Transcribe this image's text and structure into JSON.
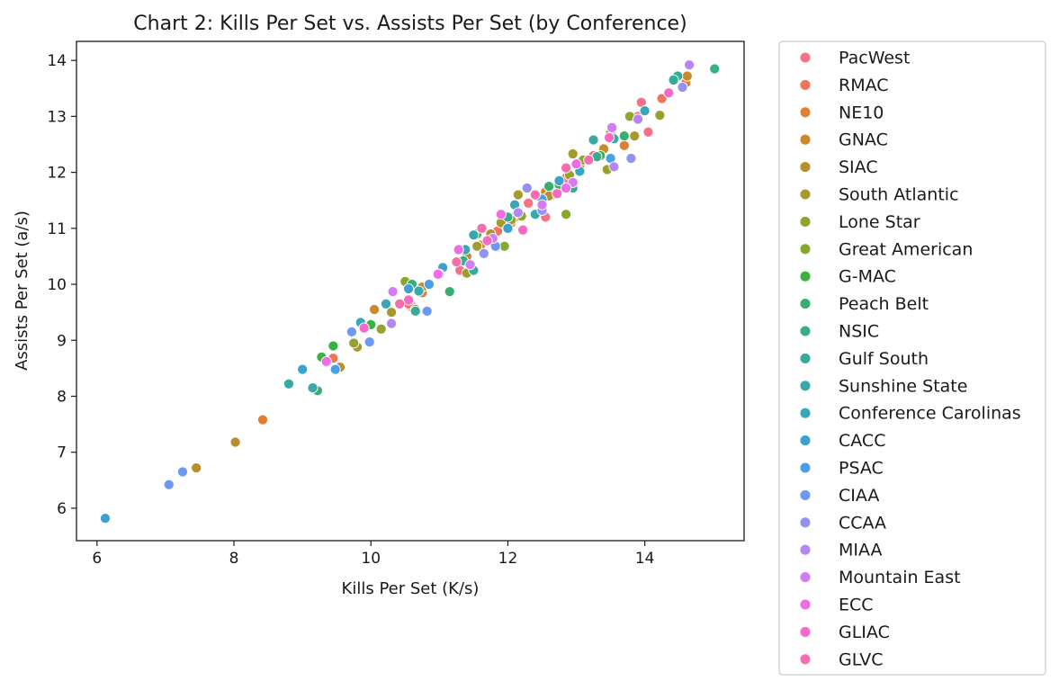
{
  "chart_data": {
    "type": "scatter",
    "title": "Chart 2: Kills Per Set vs. Assists Per Set (by Conference)",
    "xlabel": "Kills Per Set (K/s)",
    "ylabel": "Assists Per Set (a/s)",
    "xlim": [
      5.7,
      15.45
    ],
    "ylim": [
      5.42,
      14.34
    ],
    "xticks": [
      6,
      8,
      10,
      12,
      14
    ],
    "yticks": [
      6,
      7,
      8,
      9,
      10,
      11,
      12,
      13,
      14
    ],
    "grid": false,
    "legend_position": "outside right",
    "series": [
      {
        "name": "PacWest",
        "color": "#f77189",
        "points": [
          [
            13.9,
            13.0
          ],
          [
            13.95,
            13.25
          ],
          [
            14.05,
            12.72
          ],
          [
            12.3,
            11.45
          ],
          [
            12.55,
            11.2
          ],
          [
            11.3,
            10.25
          ],
          [
            10.6,
            9.6
          ],
          [
            12.85,
            11.9
          ],
          [
            13.25,
            12.3
          ]
        ]
      },
      {
        "name": "RMAC",
        "color": "#f1745a",
        "points": [
          [
            14.25,
            13.32
          ],
          [
            9.45,
            8.68
          ],
          [
            12.05,
            11.1
          ],
          [
            13.05,
            12.1
          ],
          [
            11.85,
            10.95
          ],
          [
            10.55,
            9.65
          ],
          [
            12.65,
            11.6
          ]
        ]
      },
      {
        "name": "NE10",
        "color": "#e07f2f",
        "points": [
          [
            8.42,
            7.58
          ],
          [
            14.6,
            13.6
          ],
          [
            13.7,
            12.48
          ],
          [
            12.5,
            11.5
          ],
          [
            10.75,
            9.85
          ],
          [
            11.6,
            10.7
          ]
        ]
      },
      {
        "name": "GNAC",
        "color": "#c98a2d",
        "points": [
          [
            14.62,
            13.72
          ],
          [
            13.4,
            12.42
          ],
          [
            12.1,
            11.2
          ],
          [
            10.05,
            9.55
          ],
          [
            12.55,
            11.65
          ],
          [
            10.75,
            9.95
          ]
        ]
      },
      {
        "name": "SIAC",
        "color": "#b5902c",
        "points": [
          [
            8.02,
            7.18
          ],
          [
            7.45,
            6.72
          ],
          [
            9.55,
            8.52
          ],
          [
            12.6,
            11.58
          ],
          [
            11.4,
            10.5
          ],
          [
            10.65,
            9.55
          ],
          [
            11.75,
            10.9
          ]
        ]
      },
      {
        "name": "South Atlantic",
        "color": "#a59a2c",
        "points": [
          [
            13.85,
            12.65
          ],
          [
            12.95,
            12.33
          ],
          [
            11.9,
            11.1
          ],
          [
            10.3,
            9.5
          ],
          [
            9.8,
            8.88
          ],
          [
            12.15,
            11.6
          ],
          [
            11.55,
            10.68
          ]
        ]
      },
      {
        "name": "Lone Star",
        "color": "#97a22c",
        "points": [
          [
            14.22,
            13.02
          ],
          [
            13.78,
            13.0
          ],
          [
            13.45,
            12.05
          ],
          [
            12.05,
            11.15
          ],
          [
            11.4,
            10.2
          ],
          [
            10.15,
            9.2
          ],
          [
            9.75,
            8.95
          ],
          [
            12.9,
            11.95
          ]
        ]
      },
      {
        "name": "Great American",
        "color": "#86a82c",
        "points": [
          [
            13.5,
            12.7
          ],
          [
            12.85,
            11.25
          ],
          [
            11.95,
            10.68
          ],
          [
            10.5,
            10.05
          ],
          [
            13.1,
            12.22
          ],
          [
            12.2,
            11.22
          ]
        ]
      },
      {
        "name": "G-MAC",
        "color": "#3ab33e",
        "points": [
          [
            9.28,
            8.7
          ],
          [
            10.0,
            9.28
          ],
          [
            9.45,
            8.9
          ],
          [
            11.55,
            10.9
          ],
          [
            12.75,
            11.78
          ],
          [
            13.35,
            12.3
          ]
        ]
      },
      {
        "name": "Peach Belt",
        "color": "#37b06f",
        "points": [
          [
            9.22,
            8.1
          ],
          [
            11.15,
            9.87
          ],
          [
            12.6,
            11.75
          ],
          [
            13.7,
            12.65
          ],
          [
            10.6,
            10.0
          ]
        ]
      },
      {
        "name": "NSIC",
        "color": "#38ad8b",
        "points": [
          [
            15.02,
            13.85
          ],
          [
            14.48,
            13.72
          ],
          [
            13.3,
            12.28
          ],
          [
            12.0,
            11.2
          ],
          [
            11.35,
            10.42
          ]
        ]
      },
      {
        "name": "Gulf South",
        "color": "#37ab9b",
        "points": [
          [
            14.42,
            13.65
          ],
          [
            12.95,
            11.72
          ],
          [
            11.5,
            10.25
          ],
          [
            10.65,
            9.52
          ],
          [
            13.55,
            12.6
          ]
        ]
      },
      {
        "name": "Sunshine State",
        "color": "#38a9a8",
        "points": [
          [
            8.8,
            8.22
          ],
          [
            9.15,
            8.15
          ],
          [
            13.25,
            12.58
          ],
          [
            11.5,
            10.88
          ],
          [
            12.4,
            11.25
          ],
          [
            10.7,
            9.88
          ]
        ]
      },
      {
        "name": "Conference Carolinas",
        "color": "#39a6b9",
        "points": [
          [
            9.85,
            9.32
          ],
          [
            11.38,
            10.62
          ],
          [
            12.1,
            11.42
          ],
          [
            10.22,
            9.65
          ],
          [
            13.05,
            12.02
          ],
          [
            14.0,
            13.1
          ]
        ]
      },
      {
        "name": "CACC",
        "color": "#3ca1cf",
        "points": [
          [
            6.12,
            5.82
          ],
          [
            9.0,
            8.48
          ],
          [
            12.0,
            11.0
          ],
          [
            10.55,
            9.92
          ],
          [
            11.05,
            10.3
          ],
          [
            12.75,
            11.85
          ]
        ]
      },
      {
        "name": "PSAC",
        "color": "#4a9fe6",
        "points": [
          [
            9.48,
            8.48
          ],
          [
            10.85,
            10.0
          ],
          [
            13.5,
            12.25
          ],
          [
            11.0,
            10.18
          ],
          [
            12.5,
            11.52
          ]
        ]
      },
      {
        "name": "CIAA",
        "color": "#6d99f2",
        "points": [
          [
            7.05,
            6.42
          ],
          [
            7.25,
            6.65
          ],
          [
            9.98,
            8.97
          ],
          [
            10.82,
            9.52
          ],
          [
            11.82,
            10.68
          ],
          [
            9.72,
            9.15
          ]
        ]
      },
      {
        "name": "CCAA",
        "color": "#9392f3",
        "points": [
          [
            12.28,
            11.72
          ],
          [
            13.8,
            12.25
          ],
          [
            11.65,
            10.55
          ],
          [
            14.55,
            13.52
          ],
          [
            12.5,
            11.32
          ]
        ]
      },
      {
        "name": "MIAA",
        "color": "#b587f4",
        "points": [
          [
            14.65,
            13.92
          ],
          [
            13.9,
            12.95
          ],
          [
            10.3,
            9.3
          ],
          [
            13.55,
            12.1
          ],
          [
            12.15,
            11.28
          ]
        ]
      },
      {
        "name": "Mountain East",
        "color": "#d47cf3",
        "points": [
          [
            10.32,
            9.87
          ],
          [
            11.45,
            10.35
          ],
          [
            12.95,
            11.82
          ],
          [
            12.5,
            11.42
          ],
          [
            13.52,
            12.8
          ],
          [
            11.78,
            10.82
          ]
        ]
      },
      {
        "name": "ECC",
        "color": "#ef6ce6",
        "points": [
          [
            11.28,
            10.62
          ],
          [
            11.9,
            11.25
          ],
          [
            9.35,
            8.62
          ],
          [
            12.85,
            11.72
          ],
          [
            13.0,
            12.15
          ],
          [
            10.98,
            10.18
          ]
        ]
      },
      {
        "name": "GLIAC",
        "color": "#f669c7",
        "points": [
          [
            14.35,
            13.42
          ],
          [
            12.72,
            11.62
          ],
          [
            12.22,
            10.97
          ],
          [
            11.7,
            10.78
          ],
          [
            10.55,
            9.72
          ],
          [
            13.48,
            12.62
          ],
          [
            9.9,
            9.22
          ]
        ]
      },
      {
        "name": "GLVC",
        "color": "#f66fac",
        "points": [
          [
            12.85,
            12.08
          ],
          [
            11.62,
            11.0
          ],
          [
            10.42,
            9.65
          ],
          [
            13.18,
            12.22
          ],
          [
            12.4,
            11.6
          ],
          [
            11.25,
            10.4
          ]
        ]
      }
    ]
  }
}
